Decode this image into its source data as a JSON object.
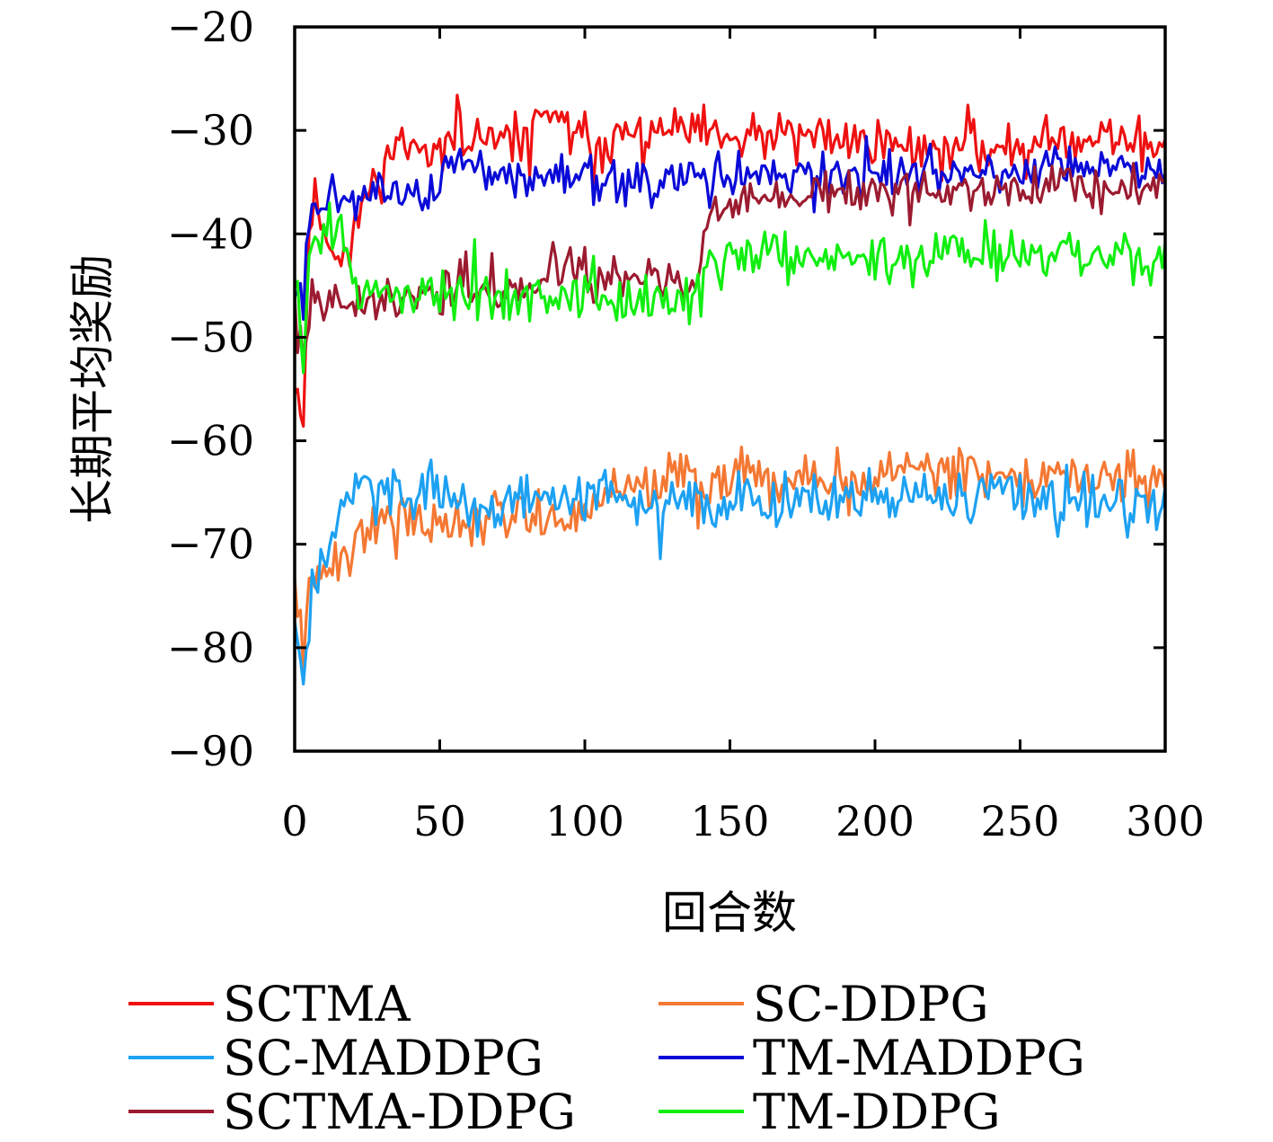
{
  "chart_data": {
    "type": "line",
    "xlabel": "回合数",
    "ylabel": "长期平均奖励",
    "xlim": [
      0,
      300
    ],
    "ylim": [
      -90,
      -20
    ],
    "x_ticks": [
      "0",
      "50",
      "100",
      "150",
      "200",
      "250",
      "300"
    ],
    "y_ticks": [
      "−20",
      "−30",
      "−40",
      "−50",
      "−60",
      "−70",
      "−80",
      "−90"
    ],
    "grid": false,
    "legend_position": "bottom",
    "series": [
      {
        "name": "SCTMA",
        "color": "#ee1111",
        "anchors": [
          [
            0,
            -54
          ],
          [
            3,
            -58
          ],
          [
            5,
            -40
          ],
          [
            7,
            -36
          ],
          [
            10,
            -40
          ],
          [
            15,
            -42
          ],
          [
            20,
            -40
          ],
          [
            25,
            -36
          ],
          [
            30,
            -34
          ],
          [
            35,
            -31
          ],
          [
            40,
            -32
          ],
          [
            50,
            -31
          ],
          [
            60,
            -31.5
          ],
          [
            80,
            -30.5
          ],
          [
            85,
            -28
          ],
          [
            100,
            -31
          ],
          [
            130,
            -30
          ],
          [
            150,
            -31
          ],
          [
            180,
            -30.5
          ],
          [
            200,
            -31
          ],
          [
            220,
            -32
          ],
          [
            250,
            -31.5
          ],
          [
            280,
            -30.5
          ],
          [
            300,
            -31.5
          ]
        ],
        "noise": 1.5,
        "seed": 11
      },
      {
        "name": "SC-DDPG",
        "color": "#f47833",
        "anchors": [
          [
            0,
            -73
          ],
          [
            3,
            -81
          ],
          [
            5,
            -74
          ],
          [
            10,
            -73
          ],
          [
            20,
            -70
          ],
          [
            30,
            -67
          ],
          [
            50,
            -67.5
          ],
          [
            80,
            -67
          ],
          [
            100,
            -67
          ],
          [
            110,
            -65
          ],
          [
            130,
            -63.5
          ],
          [
            150,
            -64
          ],
          [
            180,
            -63.5
          ],
          [
            200,
            -63.5
          ],
          [
            210,
            -62
          ],
          [
            250,
            -63.5
          ],
          [
            300,
            -63.5
          ]
        ],
        "noise": 1.6,
        "seed": 22
      },
      {
        "name": "SC-MADDPG",
        "color": "#1da1f2",
        "anchors": [
          [
            0,
            -76
          ],
          [
            3,
            -84
          ],
          [
            6,
            -75
          ],
          [
            10,
            -70
          ],
          [
            15,
            -66
          ],
          [
            20,
            -64
          ],
          [
            30,
            -65
          ],
          [
            50,
            -65.5
          ],
          [
            100,
            -66
          ],
          [
            150,
            -66
          ],
          [
            200,
            -65.5
          ],
          [
            250,
            -65.5
          ],
          [
            300,
            -66
          ]
        ],
        "noise": 1.7,
        "seed": 33
      },
      {
        "name": "TM-MADDPG",
        "color": "#0a0ad8",
        "anchors": [
          [
            0,
            -46
          ],
          [
            3,
            -45
          ],
          [
            6,
            -37
          ],
          [
            10,
            -36
          ],
          [
            20,
            -37
          ],
          [
            30,
            -36.5
          ],
          [
            50,
            -36
          ],
          [
            55,
            -33
          ],
          [
            70,
            -34
          ],
          [
            90,
            -34.5
          ],
          [
            100,
            -35
          ],
          [
            120,
            -35
          ],
          [
            150,
            -34.5
          ],
          [
            200,
            -34.5
          ],
          [
            220,
            -33.5
          ],
          [
            250,
            -34.5
          ],
          [
            270,
            -33
          ],
          [
            300,
            -34.5
          ]
        ],
        "noise": 1.4,
        "seed": 44
      },
      {
        "name": "SCTMA-DDPG",
        "color": "#9b1b30",
        "anchors": [
          [
            0,
            -45
          ],
          [
            3,
            -52
          ],
          [
            6,
            -46
          ],
          [
            10,
            -47
          ],
          [
            20,
            -46
          ],
          [
            40,
            -46
          ],
          [
            60,
            -46
          ],
          [
            80,
            -45.5
          ],
          [
            90,
            -43
          ],
          [
            100,
            -43.5
          ],
          [
            120,
            -44
          ],
          [
            138,
            -45.5
          ],
          [
            142,
            -38.5
          ],
          [
            150,
            -37
          ],
          [
            160,
            -36.5
          ],
          [
            180,
            -36
          ],
          [
            200,
            -36
          ],
          [
            230,
            -36
          ],
          [
            260,
            -36
          ],
          [
            300,
            -35.5
          ]
        ],
        "noise": 1.3,
        "seed": 55
      },
      {
        "name": "TM-DDPG",
        "color": "#11ee11",
        "anchors": [
          [
            0,
            -43
          ],
          [
            3,
            -52
          ],
          [
            5,
            -42
          ],
          [
            10,
            -40
          ],
          [
            16,
            -39
          ],
          [
            20,
            -45
          ],
          [
            30,
            -46
          ],
          [
            50,
            -45.5
          ],
          [
            80,
            -46
          ],
          [
            100,
            -46
          ],
          [
            120,
            -46.5
          ],
          [
            140,
            -46
          ],
          [
            145,
            -42
          ],
          [
            155,
            -41.5
          ],
          [
            170,
            -42.5
          ],
          [
            200,
            -42.5
          ],
          [
            230,
            -41.5
          ],
          [
            260,
            -42
          ],
          [
            300,
            -42.5
          ]
        ],
        "noise": 1.5,
        "seed": 66
      }
    ]
  }
}
